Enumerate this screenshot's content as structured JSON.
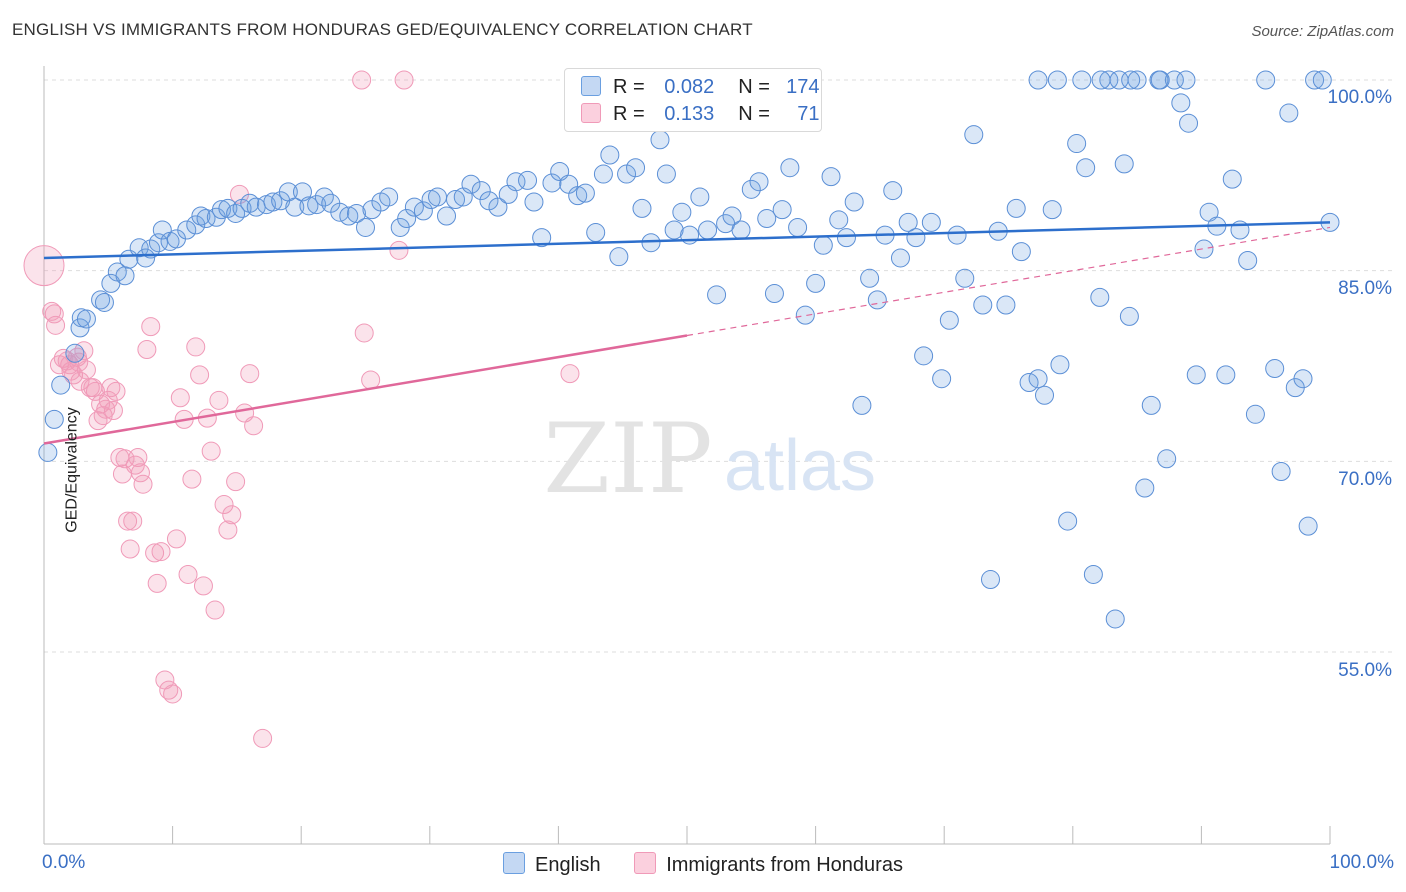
{
  "title": "ENGLISH VS IMMIGRANTS FROM HONDURAS GED/EQUIVALENCY CORRELATION CHART",
  "source": "Source: ZipAtlas.com",
  "watermark_zip": "ZIP",
  "watermark_atlas": "atlas",
  "colors": {
    "blue": "#6a9fe0",
    "blue_line": "#2d6fcc",
    "pink": "#f09ab8",
    "pink_line": "#e0689a",
    "tick_text": "#3a6fc4"
  },
  "legend_top": {
    "rows": [
      {
        "r_label": "R =",
        "r_value": "0.082",
        "n_label": "N =",
        "n_value": "174"
      },
      {
        "r_label": "R =",
        "r_value": "0.133",
        "n_label": "N =",
        "n_value": "71"
      }
    ]
  },
  "chart_data": {
    "type": "scatter",
    "title": "ENGLISH VS IMMIGRANTS FROM HONDURAS GED/EQUIVALENCY CORRELATION CHART",
    "ylabel": "GED/Equivalency",
    "xlabel": "",
    "xlim": [
      0,
      100
    ],
    "ylim": [
      40,
      102
    ],
    "x_tick_labels": [
      "0.0%",
      "100.0%"
    ],
    "y_ticks": [
      55,
      70,
      85,
      100
    ],
    "y_tick_labels": [
      "55.0%",
      "70.0%",
      "85.0%",
      "100.0%"
    ],
    "grid": "horizontal dashed",
    "legend": "bottom",
    "series": [
      {
        "name": "English",
        "r": 0.082,
        "n": 174,
        "trend": {
          "x": [
            0,
            100
          ],
          "y": [
            86.0,
            88.8
          ]
        },
        "points": [
          [
            0.3,
            70.7
          ],
          [
            0.8,
            73.3
          ],
          [
            1.3,
            76.0
          ],
          [
            2.4,
            78.5
          ],
          [
            2.8,
            80.5
          ],
          [
            2.9,
            81.3
          ],
          [
            3.3,
            81.2
          ],
          [
            4.4,
            82.7
          ],
          [
            4.7,
            82.5
          ],
          [
            5.2,
            84.0
          ],
          [
            5.7,
            84.9
          ],
          [
            6.3,
            84.6
          ],
          [
            6.6,
            85.9
          ],
          [
            7.4,
            86.8
          ],
          [
            7.9,
            86.0
          ],
          [
            8.3,
            86.7
          ],
          [
            8.9,
            87.2
          ],
          [
            9.2,
            88.2
          ],
          [
            9.8,
            87.3
          ],
          [
            10.3,
            87.5
          ],
          [
            11.1,
            88.2
          ],
          [
            11.8,
            88.6
          ],
          [
            12.2,
            89.3
          ],
          [
            12.6,
            89.1
          ],
          [
            13.4,
            89.2
          ],
          [
            13.8,
            89.8
          ],
          [
            14.3,
            89.9
          ],
          [
            14.9,
            89.5
          ],
          [
            15.4,
            89.9
          ],
          [
            16.0,
            90.3
          ],
          [
            16.5,
            90.0
          ],
          [
            17.3,
            90.2
          ],
          [
            17.8,
            90.4
          ],
          [
            18.4,
            90.5
          ],
          [
            19.0,
            91.2
          ],
          [
            19.5,
            90.0
          ],
          [
            20.1,
            91.2
          ],
          [
            20.6,
            90.1
          ],
          [
            21.2,
            90.2
          ],
          [
            21.8,
            90.8
          ],
          [
            22.3,
            90.3
          ],
          [
            23.0,
            89.6
          ],
          [
            23.7,
            89.3
          ],
          [
            24.3,
            89.5
          ],
          [
            25.0,
            88.4
          ],
          [
            25.5,
            89.8
          ],
          [
            26.2,
            90.4
          ],
          [
            26.8,
            90.8
          ],
          [
            27.7,
            88.4
          ],
          [
            28.2,
            89.1
          ],
          [
            28.8,
            90.0
          ],
          [
            29.5,
            89.7
          ],
          [
            30.1,
            90.6
          ],
          [
            30.6,
            90.8
          ],
          [
            31.3,
            89.3
          ],
          [
            32.0,
            90.6
          ],
          [
            32.6,
            90.8
          ],
          [
            33.2,
            91.8
          ],
          [
            34.0,
            91.3
          ],
          [
            34.6,
            90.5
          ],
          [
            35.3,
            90.0
          ],
          [
            36.1,
            91.0
          ],
          [
            36.7,
            92.0
          ],
          [
            37.6,
            92.1
          ],
          [
            38.1,
            90.4
          ],
          [
            38.7,
            87.6
          ],
          [
            39.5,
            91.9
          ],
          [
            40.1,
            92.8
          ],
          [
            40.8,
            91.8
          ],
          [
            41.5,
            90.9
          ],
          [
            42.1,
            91.1
          ],
          [
            42.9,
            88.0
          ],
          [
            43.5,
            92.6
          ],
          [
            44.0,
            94.1
          ],
          [
            44.7,
            86.1
          ],
          [
            45.3,
            92.6
          ],
          [
            46.0,
            93.1
          ],
          [
            46.5,
            89.9
          ],
          [
            47.2,
            87.2
          ],
          [
            47.9,
            95.3
          ],
          [
            48.4,
            92.6
          ],
          [
            49.0,
            88.2
          ],
          [
            49.6,
            89.6
          ],
          [
            50.2,
            87.8
          ],
          [
            51.0,
            90.8
          ],
          [
            51.6,
            88.2
          ],
          [
            52.3,
            83.1
          ],
          [
            53.0,
            88.7
          ],
          [
            53.5,
            89.3
          ],
          [
            54.2,
            88.2
          ],
          [
            55.0,
            91.4
          ],
          [
            55.6,
            92.0
          ],
          [
            56.2,
            89.1
          ],
          [
            56.8,
            83.2
          ],
          [
            57.4,
            89.8
          ],
          [
            58.0,
            93.1
          ],
          [
            58.6,
            88.4
          ],
          [
            59.2,
            81.5
          ],
          [
            60.0,
            84.0
          ],
          [
            60.6,
            87.0
          ],
          [
            61.2,
            92.4
          ],
          [
            61.8,
            89.0
          ],
          [
            62.4,
            87.6
          ],
          [
            63.0,
            90.4
          ],
          [
            63.6,
            74.4
          ],
          [
            64.2,
            84.4
          ],
          [
            64.8,
            82.7
          ],
          [
            65.4,
            87.8
          ],
          [
            66.0,
            91.3
          ],
          [
            66.6,
            86.0
          ],
          [
            67.2,
            88.8
          ],
          [
            67.8,
            87.6
          ],
          [
            68.4,
            78.3
          ],
          [
            69.0,
            88.8
          ],
          [
            69.8,
            76.5
          ],
          [
            70.4,
            81.1
          ],
          [
            71.0,
            87.8
          ],
          [
            71.6,
            84.4
          ],
          [
            72.3,
            95.7
          ],
          [
            73.0,
            82.3
          ],
          [
            73.6,
            60.7
          ],
          [
            74.2,
            88.1
          ],
          [
            74.8,
            82.3
          ],
          [
            75.6,
            89.9
          ],
          [
            76.0,
            86.5
          ],
          [
            76.6,
            76.2
          ],
          [
            77.3,
            76.5
          ],
          [
            77.8,
            75.2
          ],
          [
            78.4,
            89.8
          ],
          [
            79.0,
            77.6
          ],
          [
            79.6,
            65.3
          ],
          [
            80.3,
            95.0
          ],
          [
            81.0,
            93.1
          ],
          [
            81.6,
            61.1
          ],
          [
            82.1,
            82.9
          ],
          [
            82.8,
            100.0
          ],
          [
            83.3,
            57.6
          ],
          [
            84.0,
            93.4
          ],
          [
            84.4,
            81.4
          ],
          [
            85.0,
            100.0
          ],
          [
            85.6,
            67.9
          ],
          [
            86.1,
            74.4
          ],
          [
            86.7,
            100.0
          ],
          [
            87.3,
            70.2
          ],
          [
            87.9,
            100.0
          ],
          [
            88.4,
            98.2
          ],
          [
            89.0,
            96.6
          ],
          [
            89.6,
            76.8
          ],
          [
            90.2,
            86.7
          ],
          [
            90.6,
            89.6
          ],
          [
            91.2,
            88.5
          ],
          [
            91.9,
            76.8
          ],
          [
            92.4,
            92.2
          ],
          [
            93.0,
            88.2
          ],
          [
            93.6,
            85.8
          ],
          [
            94.2,
            73.7
          ],
          [
            95.0,
            100.0
          ],
          [
            95.7,
            77.3
          ],
          [
            96.2,
            69.2
          ],
          [
            96.8,
            97.4
          ],
          [
            97.3,
            75.8
          ],
          [
            97.9,
            76.5
          ],
          [
            98.3,
            64.9
          ],
          [
            98.8,
            100.0
          ],
          [
            99.4,
            100.0
          ],
          [
            100.0,
            88.8
          ],
          [
            77.3,
            100.0
          ],
          [
            78.8,
            100.0
          ],
          [
            80.7,
            100.0
          ],
          [
            82.2,
            100.0
          ],
          [
            83.6,
            100.0
          ],
          [
            84.5,
            100.0
          ],
          [
            86.8,
            100.0
          ],
          [
            88.8,
            100.0
          ]
        ]
      },
      {
        "name": "Immigrants from Honduras",
        "r": 0.133,
        "n": 71,
        "trend": {
          "x": [
            0,
            50
          ],
          "y": [
            71.4,
            79.9
          ]
        },
        "trend_extension": {
          "x": [
            50,
            100
          ],
          "y": [
            79.9,
            88.4
          ]
        },
        "points": [
          [
            0.0,
            85.4
          ],
          [
            0.6,
            81.8
          ],
          [
            0.8,
            81.6
          ],
          [
            0.9,
            80.7
          ],
          [
            1.2,
            77.6
          ],
          [
            1.5,
            78.1
          ],
          [
            1.8,
            77.9
          ],
          [
            2.0,
            77.6
          ],
          [
            2.1,
            77.1
          ],
          [
            2.3,
            76.8
          ],
          [
            2.6,
            78.2
          ],
          [
            2.7,
            77.8
          ],
          [
            2.8,
            76.3
          ],
          [
            3.1,
            78.7
          ],
          [
            3.3,
            77.2
          ],
          [
            3.6,
            75.8
          ],
          [
            3.8,
            75.8
          ],
          [
            4.0,
            75.5
          ],
          [
            4.2,
            73.2
          ],
          [
            4.4,
            74.5
          ],
          [
            4.6,
            73.6
          ],
          [
            4.8,
            74.1
          ],
          [
            5.0,
            74.8
          ],
          [
            5.2,
            75.8
          ],
          [
            5.4,
            74.0
          ],
          [
            5.6,
            75.5
          ],
          [
            5.9,
            70.3
          ],
          [
            6.1,
            69.0
          ],
          [
            6.3,
            70.2
          ],
          [
            6.5,
            65.3
          ],
          [
            6.7,
            63.1
          ],
          [
            6.9,
            65.3
          ],
          [
            7.1,
            69.7
          ],
          [
            7.3,
            70.3
          ],
          [
            7.5,
            69.1
          ],
          [
            7.7,
            68.2
          ],
          [
            8.0,
            78.8
          ],
          [
            8.3,
            80.6
          ],
          [
            8.6,
            62.8
          ],
          [
            8.8,
            60.4
          ],
          [
            9.1,
            62.9
          ],
          [
            9.4,
            52.8
          ],
          [
            9.7,
            52.0
          ],
          [
            10.0,
            51.7
          ],
          [
            10.3,
            63.9
          ],
          [
            10.6,
            75.0
          ],
          [
            10.9,
            73.3
          ],
          [
            11.2,
            61.1
          ],
          [
            11.5,
            68.6
          ],
          [
            11.8,
            79.0
          ],
          [
            12.1,
            76.8
          ],
          [
            12.4,
            60.2
          ],
          [
            12.7,
            73.4
          ],
          [
            13.0,
            70.8
          ],
          [
            13.3,
            58.3
          ],
          [
            13.6,
            74.8
          ],
          [
            14.0,
            66.6
          ],
          [
            14.3,
            64.6
          ],
          [
            14.6,
            65.8
          ],
          [
            14.9,
            68.4
          ],
          [
            15.2,
            91.0
          ],
          [
            15.6,
            73.8
          ],
          [
            16.0,
            76.9
          ],
          [
            16.3,
            72.8
          ],
          [
            17.0,
            48.2
          ],
          [
            24.7,
            100.0
          ],
          [
            24.9,
            80.1
          ],
          [
            25.4,
            76.4
          ],
          [
            27.6,
            86.6
          ],
          [
            28.0,
            100.0
          ],
          [
            40.9,
            76.9
          ]
        ]
      }
    ]
  },
  "legend_bottom": {
    "items": [
      {
        "label": "English"
      },
      {
        "label": "Immigrants from Honduras"
      }
    ]
  }
}
